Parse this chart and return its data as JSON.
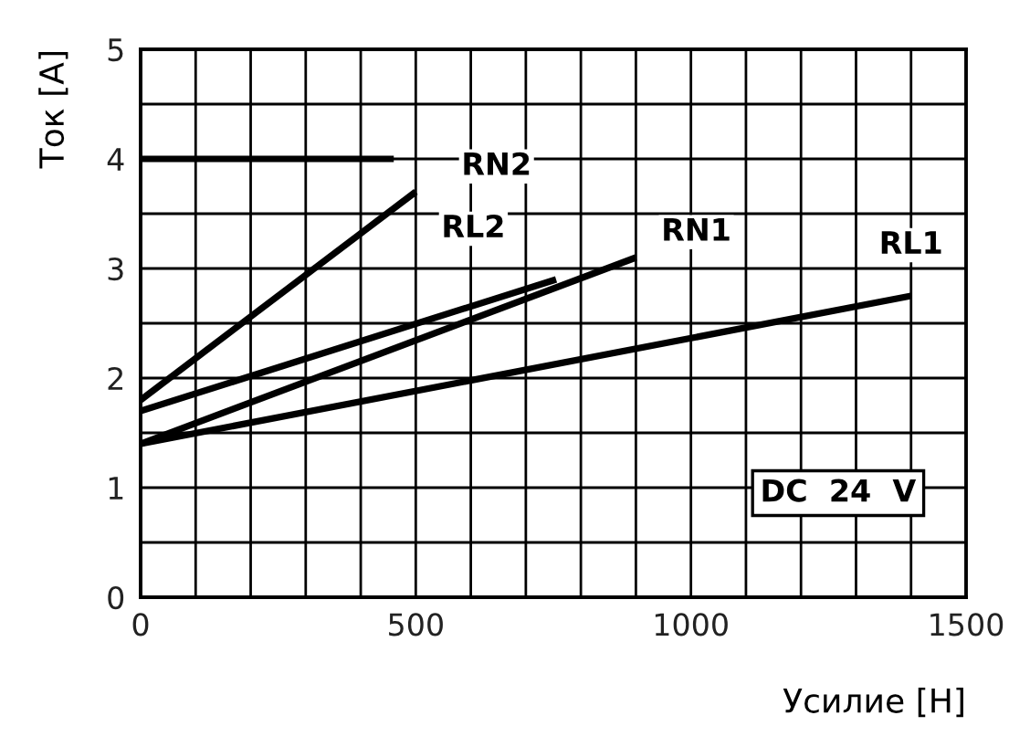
{
  "chart_data": {
    "type": "line",
    "xlabel": "Усилие [Н]",
    "ylabel": "Ток [А]",
    "xlim": [
      0,
      1500
    ],
    "ylim": [
      0,
      5
    ],
    "xticks": [
      0,
      {
        "value": 100,
        "label": null
      },
      {
        "value": 200,
        "label": null
      },
      {
        "value": 300,
        "label": null
      },
      {
        "value": 400,
        "label": null
      },
      500,
      {
        "value": 600,
        "label": null
      },
      {
        "value": 700,
        "label": null
      },
      {
        "value": 800,
        "label": null
      },
      {
        "value": 900,
        "label": null
      },
      1000,
      {
        "value": 1100,
        "label": null
      },
      {
        "value": 1200,
        "label": null
      },
      {
        "value": 1300,
        "label": null
      },
      {
        "value": 1400,
        "label": null
      },
      1500
    ],
    "yticks": [
      0,
      {
        "value": 0.5,
        "label": null
      },
      1,
      {
        "value": 1.5,
        "label": null
      },
      2,
      {
        "value": 2.5,
        "label": null
      },
      3,
      {
        "value": 3.5,
        "label": null
      },
      4,
      {
        "value": 4.5,
        "label": null
      },
      5
    ],
    "grid": true,
    "marker": "none",
    "line_style": "solid",
    "series": [
      {
        "color": "#000000",
        "x": [
          0,
          500
        ],
        "values": [
          1.8,
          3.7
        ]
      },
      {
        "color": "#000000",
        "x": [
          0,
          755
        ],
        "values": [
          1.7,
          2.9
        ]
      },
      {
        "color": "#000000",
        "x": [
          0,
          900
        ],
        "values": [
          1.4,
          3.1
        ]
      },
      {
        "color": "#000000",
        "x": [
          0,
          1400
        ],
        "values": [
          1.4,
          2.75
        ]
      },
      {
        "color": "#000000",
        "x": [
          0,
          460
        ],
        "values": [
          4,
          4
        ]
      }
    ],
    "annotations": [
      {
        "text": "RN2",
        "x": 500,
        "y": 3.7
      },
      {
        "text": "RL2",
        "x": 755,
        "y": 2.9
      },
      {
        "text": "RN1",
        "x": 900,
        "y": 3.1
      },
      {
        "text": "RL1",
        "x": 1400,
        "y": 2.75
      },
      "DC  24  V"
    ]
  }
}
